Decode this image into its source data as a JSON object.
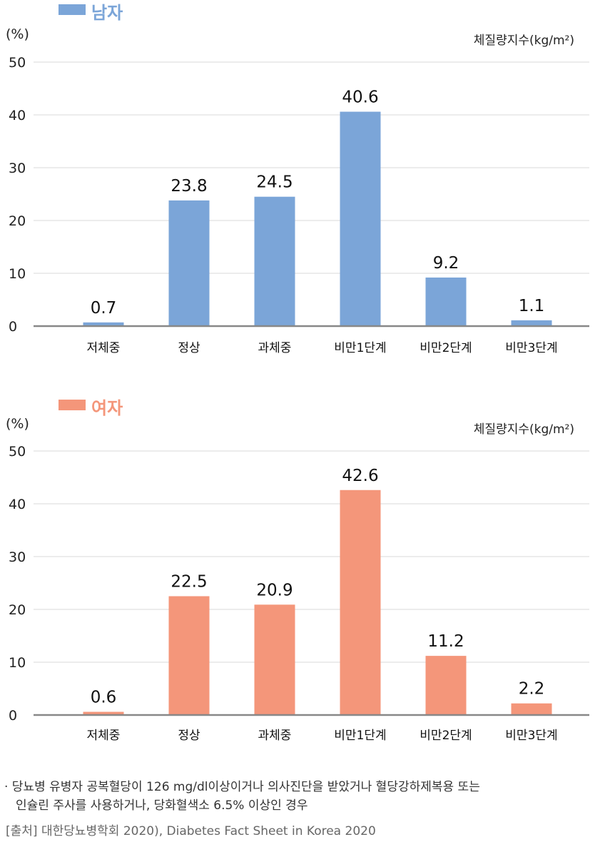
{
  "chart_data": [
    {
      "type": "bar",
      "legend": "남자",
      "color": "#7BA5D8",
      "ylabel": "(%)",
      "unit_label": "체질량지수(kg/m²)",
      "categories": [
        "저체중",
        "정상",
        "과체중",
        "비만1단계",
        "비만2단계",
        "비만3단계"
      ],
      "values": [
        0.7,
        23.8,
        24.5,
        40.6,
        9.2,
        1.1
      ],
      "value_labels": [
        "0.7",
        "23.8",
        "24.5",
        "40.6",
        "9.2",
        "1.1"
      ],
      "yticks": [
        "0",
        "10",
        "20",
        "30",
        "40",
        "50"
      ],
      "ylim": [
        0,
        50
      ],
      "grid": true
    },
    {
      "type": "bar",
      "legend": "여자",
      "color": "#F4967A",
      "ylabel": "(%)",
      "unit_label": "체질량지수(kg/m²)",
      "categories": [
        "저체중",
        "정상",
        "과체중",
        "비만1단계",
        "비만2단계",
        "비만3단계"
      ],
      "values": [
        0.6,
        22.5,
        20.9,
        42.6,
        11.2,
        2.2
      ],
      "value_labels": [
        "0.6",
        "22.5",
        "20.9",
        "42.6",
        "11.2",
        "2.2"
      ],
      "yticks": [
        "0",
        "10",
        "20",
        "30",
        "40",
        "50"
      ],
      "ylim": [
        0,
        50
      ],
      "grid": true
    }
  ],
  "footnote": {
    "line1": "· 당뇨병 유병자 공복혈당이 126 mg/dl이상이거나 의사진단을 받았거나 혈당강하제복용 또는",
    "line2": "인슐린 주사를 사용하거나, 당화혈색소 6.5% 이상인 경우"
  },
  "source": "[출처] 대한당뇨병학회 2020), Diabetes Fact Sheet in Korea 2020"
}
